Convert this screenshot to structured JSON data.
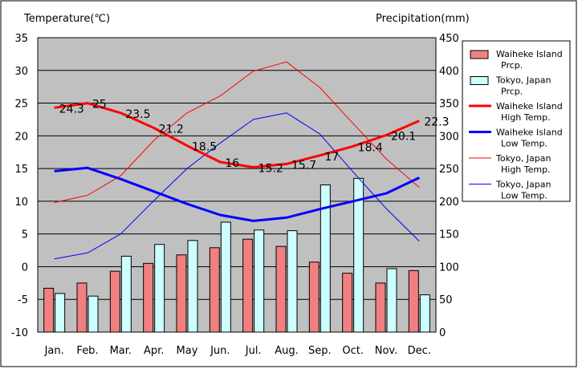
{
  "chart_data": {
    "type": "bar+line",
    "left_axis_title": "Temperature(℃)",
    "right_axis_title": "Precipitation(mm)",
    "left_ylim": [
      -10,
      35
    ],
    "left_ticks": [
      -10,
      -5,
      0,
      5,
      10,
      15,
      20,
      25,
      30,
      35
    ],
    "right_ylim": [
      0,
      450
    ],
    "right_ticks": [
      0,
      50,
      100,
      150,
      200,
      250,
      300,
      350,
      400,
      450
    ],
    "categories": [
      "Jan.",
      "Feb.",
      "Mar.",
      "Apr.",
      "May",
      "Jun.",
      "Jul.",
      "Aug.",
      "Sep.",
      "Oct.",
      "Nov.",
      "Dec."
    ],
    "bar_series": [
      {
        "name": "Waiheke Island Prcp.",
        "color": "#f08080",
        "values": [
          67,
          75,
          93,
          105,
          118,
          129,
          142,
          131,
          107,
          90,
          75,
          94
        ]
      },
      {
        "name": "Tokyo, Japan Prcp.",
        "color": "#ccffff",
        "values": [
          59,
          55,
          116,
          134,
          140,
          168,
          156,
          155,
          225,
          235,
          97,
          57
        ]
      }
    ],
    "line_series": [
      {
        "name": "Waiheke Island High Temp.",
        "color": "#ff0000",
        "width": 3,
        "values": [
          24.3,
          25,
          23.5,
          21.2,
          18.5,
          16,
          15.2,
          15.7,
          17,
          18.4,
          20.1,
          22.3
        ],
        "labels": [
          "24.3",
          "25",
          "23.5",
          "21.2",
          "18.5",
          "16",
          "15.2",
          "15.7",
          "17",
          "18.4",
          "20.1",
          "22.3"
        ]
      },
      {
        "name": "Waiheke Island Low Temp.",
        "color": "#0000ff",
        "width": 3,
        "values": [
          14.6,
          15.1,
          13.4,
          11.5,
          9.6,
          7.9,
          7.0,
          7.5,
          8.8,
          10.0,
          11.2,
          13.6
        ]
      },
      {
        "name": "Tokyo, Japan High Temp.",
        "color": "#ff0000",
        "width": 1,
        "values": [
          9.8,
          10.9,
          13.9,
          19.3,
          23.5,
          26.1,
          29.9,
          31.3,
          27.4,
          21.9,
          16.5,
          12.1
        ]
      },
      {
        "name": "Tokyo, Japan Low Temp.",
        "color": "#0000ff",
        "width": 1,
        "values": [
          1.2,
          2.1,
          5.0,
          10.1,
          15.0,
          18.9,
          22.5,
          23.5,
          20.3,
          14.5,
          8.9,
          3.9
        ]
      }
    ],
    "legend": [
      {
        "kind": "bar",
        "color": "#f08080",
        "line1": "Waiheke Island",
        "line2": "Prcp."
      },
      {
        "kind": "bar",
        "color": "#ccffff",
        "line1": "Tokyo, Japan",
        "line2": "Prcp."
      },
      {
        "kind": "line",
        "color": "#ff0000",
        "width": 3,
        "line1": "Waiheke Island",
        "line2": "High Temp."
      },
      {
        "kind": "line",
        "color": "#0000ff",
        "width": 3,
        "line1": "Waiheke Island",
        "line2": "Low Temp."
      },
      {
        "kind": "line",
        "color": "#ff0000",
        "width": 1,
        "line1": "Tokyo, Japan",
        "line2": "High Temp."
      },
      {
        "kind": "line",
        "color": "#0000ff",
        "width": 1,
        "line1": "Tokyo, Japan",
        "line2": "Low Temp."
      }
    ],
    "legend_placement": "right",
    "plot_background": "#c0c0c0",
    "grid": "horizontal"
  }
}
